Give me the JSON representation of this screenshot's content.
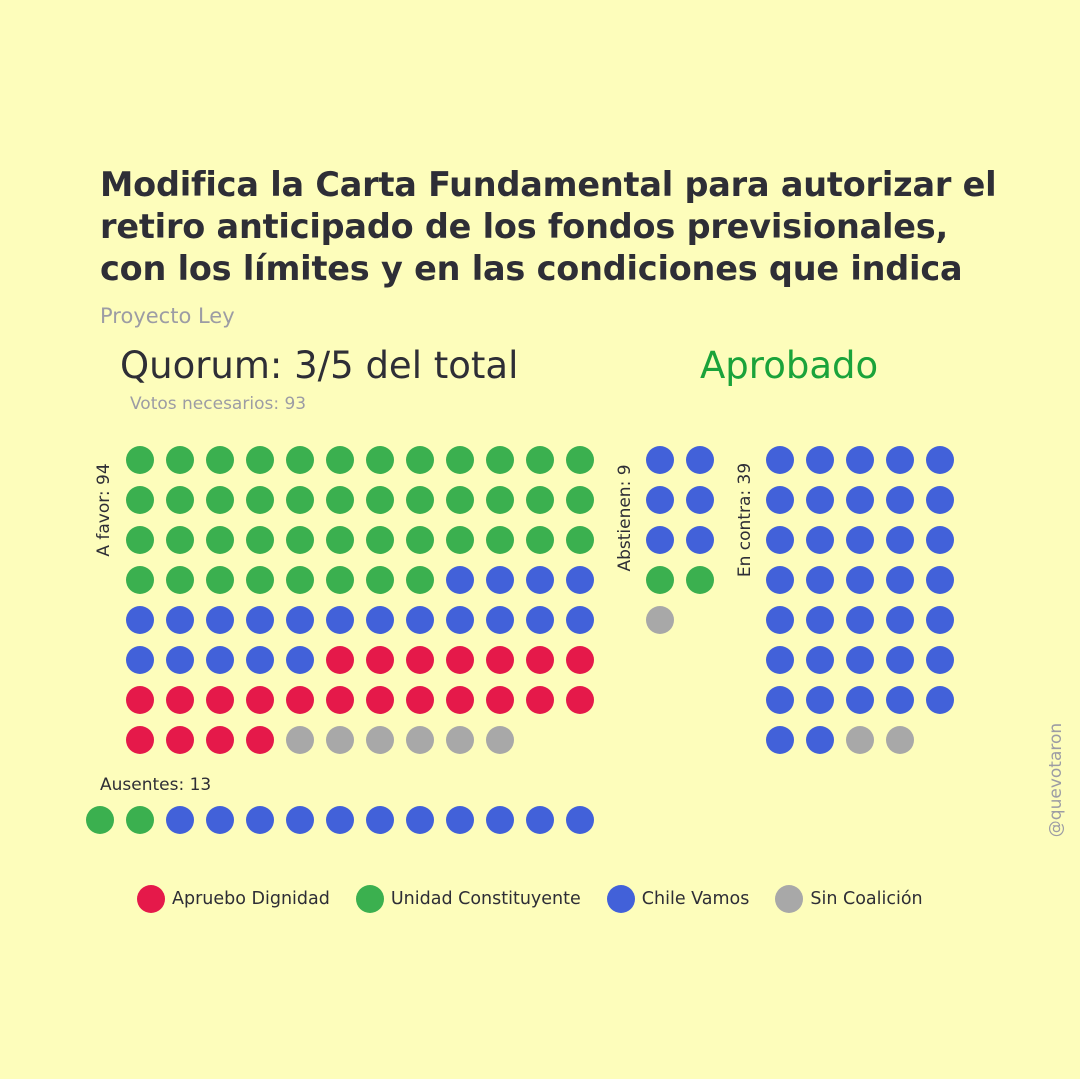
{
  "title": "Modifica la Carta Fundamental para autorizar el retiro anticipado de los fondos previsionales, con los límites y en las condiciones que indica",
  "subtitle": "Proyecto Ley",
  "quorum": "Quorum: 3/5 del total",
  "votes_needed": "Votos necesarios: 93",
  "result": "Aprobado",
  "credit": "@quevotaron",
  "colors": {
    "background": "#fdfdbb",
    "result": "#1aa33a",
    "apruebo_dignidad": "#e5194a",
    "unidad_constituyente": "#3bb04f",
    "chile_vamos": "#4261d9",
    "sin_coalicion": "#a8a8a8"
  },
  "chart_data": {
    "type": "waffle",
    "groups": [
      {
        "label": "A favor: 94",
        "name": "A favor",
        "total": 94,
        "composition": [
          {
            "coalition": "Unidad Constituyente",
            "count": 44
          },
          {
            "coalition": "Chile Vamos",
            "count": 21
          },
          {
            "coalition": "Apruebo Dignidad",
            "count": 23
          },
          {
            "coalition": "Sin Coalición",
            "count": 6
          }
        ]
      },
      {
        "label": "Abstienen: 9",
        "name": "Abstienen",
        "total": 9,
        "composition": [
          {
            "coalition": "Chile Vamos",
            "count": 6
          },
          {
            "coalition": "Unidad Constituyente",
            "count": 2
          },
          {
            "coalition": "Sin Coalición",
            "count": 1
          }
        ]
      },
      {
        "label": "En contra: 39",
        "name": "En contra",
        "total": 39,
        "composition": [
          {
            "coalition": "Chile Vamos",
            "count": 37
          },
          {
            "coalition": "Sin Coalición",
            "count": 2
          }
        ]
      },
      {
        "label": "Ausentes: 13",
        "name": "Ausentes",
        "total": 13,
        "composition": [
          {
            "coalition": "Unidad Constituyente",
            "count": 2
          },
          {
            "coalition": "Chile Vamos",
            "count": 11
          }
        ]
      }
    ],
    "legend": [
      "Apruebo Dignidad",
      "Unidad Constituyente",
      "Chile Vamos",
      "Sin Coalición"
    ]
  }
}
